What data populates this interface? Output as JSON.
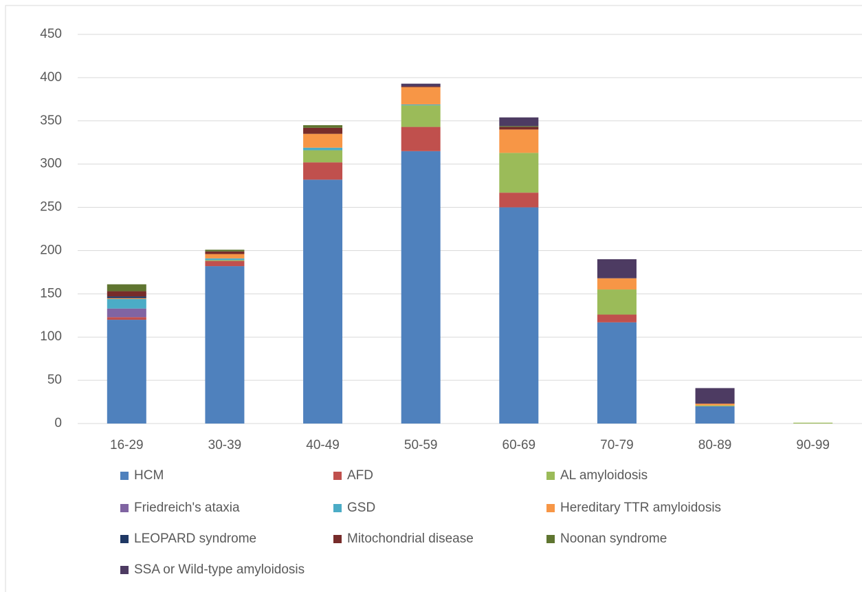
{
  "chart_data": {
    "type": "stacked_bar",
    "categories": [
      "16-29",
      "30-39",
      "40-49",
      "50-59",
      "60-69",
      "70-79",
      "80-89",
      "90-99"
    ],
    "series": [
      {
        "name": "HCM",
        "color": "#4f81bd",
        "values": [
          120,
          182,
          282,
          315,
          250,
          117,
          20,
          0
        ]
      },
      {
        "name": "AFD",
        "color": "#c0504d",
        "values": [
          3,
          6,
          20,
          28,
          17,
          9,
          0,
          0
        ]
      },
      {
        "name": "AL amyloidosis",
        "color": "#9bbb59",
        "values": [
          0,
          1,
          14,
          25,
          46,
          29,
          1,
          1
        ]
      },
      {
        "name": "Friedreich's ataxia",
        "color": "#8064a2",
        "values": [
          10,
          0,
          0,
          0,
          0,
          0,
          0,
          0
        ]
      },
      {
        "name": "GSD",
        "color": "#4bacc6",
        "values": [
          11,
          2,
          3,
          1,
          0,
          0,
          0,
          0
        ]
      },
      {
        "name": "Hereditary TTR amyloidosis",
        "color": "#f79646",
        "values": [
          1,
          5,
          16,
          20,
          27,
          13,
          2,
          0
        ]
      },
      {
        "name": "LEOPARD syndrome",
        "color": "#1f3864",
        "values": [
          2,
          0,
          0,
          0,
          0,
          0,
          0,
          0
        ]
      },
      {
        "name": "Mitochondrial disease",
        "color": "#772c2a",
        "values": [
          6,
          3,
          7,
          1,
          3,
          0,
          0,
          0
        ]
      },
      {
        "name": "Noonan syndrome",
        "color": "#5f7530",
        "values": [
          8,
          2,
          3,
          0,
          1,
          0,
          0,
          0
        ]
      },
      {
        "name": "SSA or Wild-type amyloidosis",
        "color": "#4d3b62",
        "values": [
          0,
          0,
          0,
          3,
          10,
          22,
          18,
          0
        ]
      }
    ],
    "ylim": [
      0,
      450
    ],
    "yticks": [
      0,
      50,
      100,
      150,
      200,
      250,
      300,
      350,
      400,
      450
    ],
    "grid": true
  }
}
